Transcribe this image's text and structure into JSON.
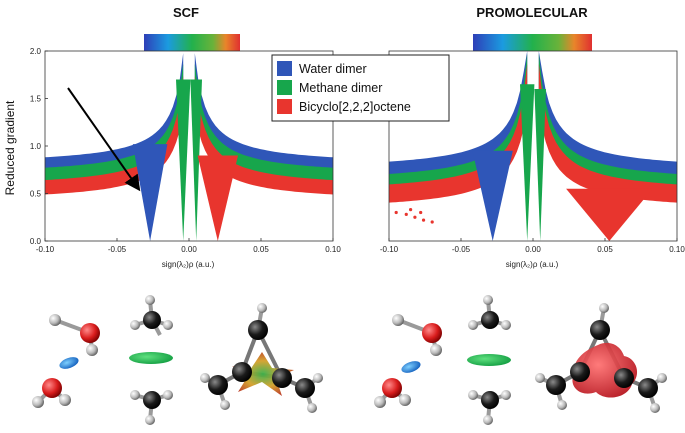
{
  "chart_data": [
    {
      "type": "scatter",
      "title": "SCF",
      "xlabel": "sign(λ₂)ρ (a.u.)",
      "ylabel": "Reduced gradient",
      "xlim": [
        -0.1,
        0.1
      ],
      "ylim": [
        0.0,
        2.0
      ],
      "x_ticks": [
        "-0.10",
        "-0.05",
        "0.00",
        "0.05",
        "0.10"
      ],
      "y_ticks": [
        "0.0",
        "0.5",
        "1.0",
        "1.5",
        "2.0"
      ],
      "series": [
        {
          "name": "Water dimer",
          "color": "#2f56b8",
          "edge": {
            "x": [
              -0.1,
              -0.07,
              -0.05,
              -0.035,
              -0.028,
              -0.02,
              -0.012,
              -0.006,
              0.006,
              0.012,
              0.02,
              0.03,
              0.05,
              0.07,
              0.1
            ],
            "y": [
              0.82,
              0.95,
              1.08,
              1.2,
              1.3,
              1.45,
              1.65,
              2.0,
              2.0,
              1.62,
              1.45,
              1.3,
              1.12,
              0.95,
              0.82
            ]
          },
          "spikes_at": [
            -0.027
          ]
        },
        {
          "name": "Methane dimer",
          "color": "#17a64c",
          "edge": {
            "x": [
              -0.1,
              -0.07,
              -0.05,
              -0.03,
              -0.02,
              -0.01,
              -0.004,
              0.004,
              0.01,
              0.02,
              0.03,
              0.05,
              0.07,
              0.1
            ],
            "y": [
              0.72,
              0.82,
              0.92,
              1.05,
              1.2,
              1.45,
              2.0,
              2.0,
              1.45,
              1.2,
              1.05,
              0.92,
              0.82,
              0.72
            ]
          },
          "spikes_at": [
            -0.004,
            0.005
          ]
        },
        {
          "name": "Bicyclo[2,2,2]octene",
          "color": "#e8352e",
          "edge": {
            "x": [
              -0.1,
              -0.07,
              -0.05,
              -0.03,
              -0.02,
              -0.01,
              -0.004,
              0.004,
              0.01,
              0.02,
              0.03,
              0.05,
              0.07,
              0.1
            ],
            "y": [
              0.6,
              0.68,
              0.76,
              0.9,
              1.05,
              1.3,
              2.0,
              2.0,
              1.3,
              1.05,
              0.9,
              0.76,
              0.68,
              0.6
            ]
          },
          "spikes_at": [
            0.02
          ]
        }
      ],
      "annotations": [
        "arrow pointing to water-dimer spike"
      ],
      "colorbar": "blue-green-red gradient"
    },
    {
      "type": "scatter",
      "title": "PROMOLECULAR",
      "xlabel": "sign(λ₂)ρ (a.u.)",
      "xlim": [
        -0.1,
        0.1
      ],
      "ylim": [
        0.0,
        2.0
      ],
      "x_ticks": [
        "-0.10",
        "-0.05",
        "0.00",
        "0.05",
        "0.10"
      ],
      "series": [
        {
          "name": "Water dimer",
          "color": "#2f56b8",
          "spikes_at": [
            -0.028
          ]
        },
        {
          "name": "Methane dimer",
          "color": "#17a64c",
          "spikes_at": [
            -0.004,
            0.005
          ]
        },
        {
          "name": "Bicyclo[2,2,2]octene",
          "color": "#e8352e",
          "spikes_at": [
            0.053
          ]
        }
      ],
      "colorbar": "blue-green-red gradient"
    }
  ],
  "legend": {
    "entries": [
      {
        "label": "Water dimer",
        "color": "#2f56b8"
      },
      {
        "label": "Methane dimer",
        "color": "#17a64c"
      },
      {
        "label": "Bicyclo[2,2,2]octene",
        "color": "#e8352e"
      }
    ],
    "placement": "top-center"
  },
  "molecules": [
    {
      "panel": "SCF",
      "items": [
        "water-dimer",
        "methane-dimer",
        "bicyclooctene"
      ]
    },
    {
      "panel": "PROMOLECULAR",
      "items": [
        "water-dimer",
        "methane-dimer",
        "bicyclooctene"
      ]
    }
  ]
}
